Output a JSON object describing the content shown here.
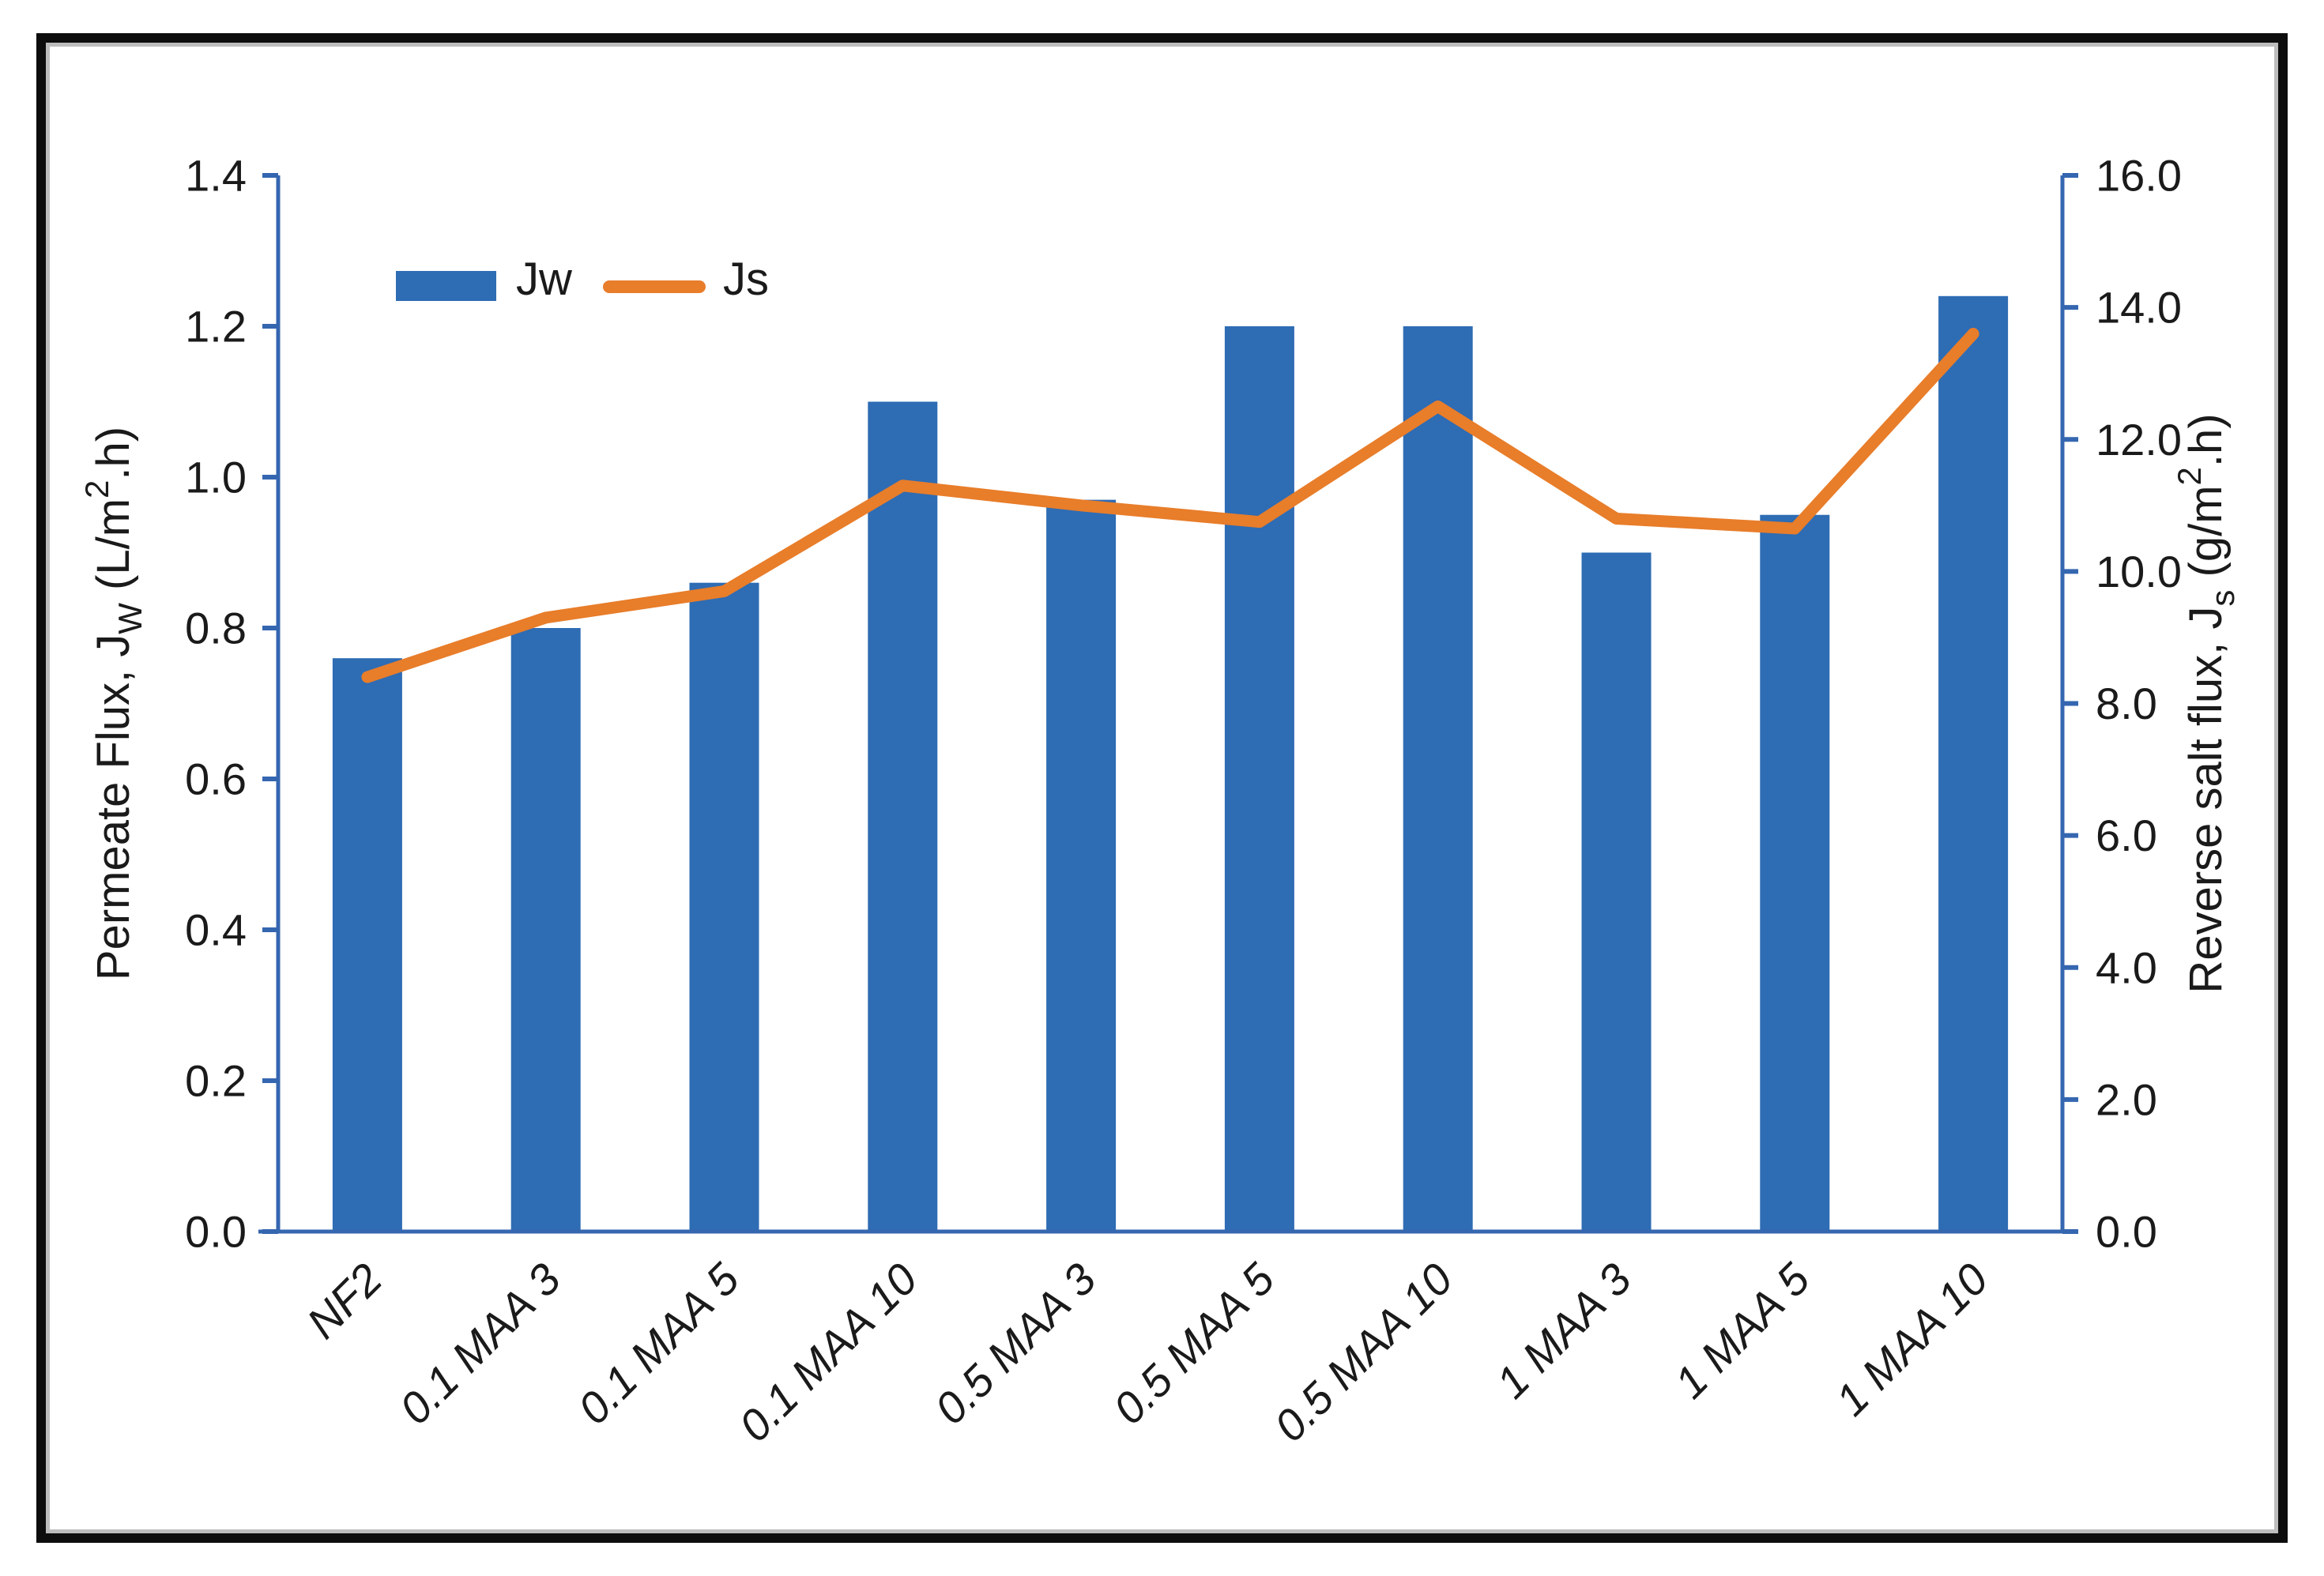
{
  "chart_data": {
    "type": "bar",
    "subtype": "combo-bar-line-dual-axis",
    "categories": [
      "NF2",
      "0.1 MAA 3",
      "0.1 MAA 5",
      "0.1 MAA 10",
      "0.5 MAA 3",
      "0.5 MAA 5",
      "0.5 MAA 10",
      "1 MAA 3",
      "1 MAA 5",
      "1 MAA 10"
    ],
    "series": [
      {
        "name": "Jw",
        "type": "bar",
        "axis": "left",
        "values": [
          0.76,
          0.8,
          0.86,
          1.1,
          0.97,
          1.2,
          1.2,
          0.9,
          0.95,
          1.24
        ]
      },
      {
        "name": "Js",
        "type": "line",
        "axis": "right",
        "values": [
          8.4,
          9.3,
          9.7,
          11.3,
          11.0,
          10.75,
          12.5,
          10.8,
          10.65,
          13.6
        ]
      }
    ],
    "left_axis": {
      "min": 0.0,
      "max": 1.4,
      "step": 0.2,
      "decimals": 1,
      "title_parts": [
        {
          "text": "Permeate Flux,  J",
          "script": "normal"
        },
        {
          "text": "W",
          "script": "sub"
        },
        {
          "text": " (L/m",
          "script": "normal"
        },
        {
          "text": "2",
          "script": "sup"
        },
        {
          "text": ".h)",
          "script": "normal"
        }
      ]
    },
    "right_axis": {
      "min": 0.0,
      "max": 16.0,
      "step": 2.0,
      "decimals": 1,
      "title_parts": [
        {
          "text": "Reverse salt flux,  J",
          "script": "normal"
        },
        {
          "text": "s",
          "script": "sub"
        },
        {
          "text": " (g/m",
          "script": "normal"
        },
        {
          "text": "2",
          "script": "sup"
        },
        {
          "text": ".h)",
          "script": "normal"
        }
      ]
    },
    "x_axis": {
      "label_rotation_deg": -45,
      "label_style": "italic"
    },
    "legend": {
      "position": "top-left-inside",
      "entries": [
        "Jw",
        "Js"
      ]
    },
    "grid": "off",
    "colors": {
      "bar": "#2e6cb4",
      "line": "#e87d2a",
      "axis": "#3566b0",
      "text": "#1a1a1a",
      "frame_black": "#0d0d0d",
      "frame_gray": "#bdbdbd"
    }
  }
}
